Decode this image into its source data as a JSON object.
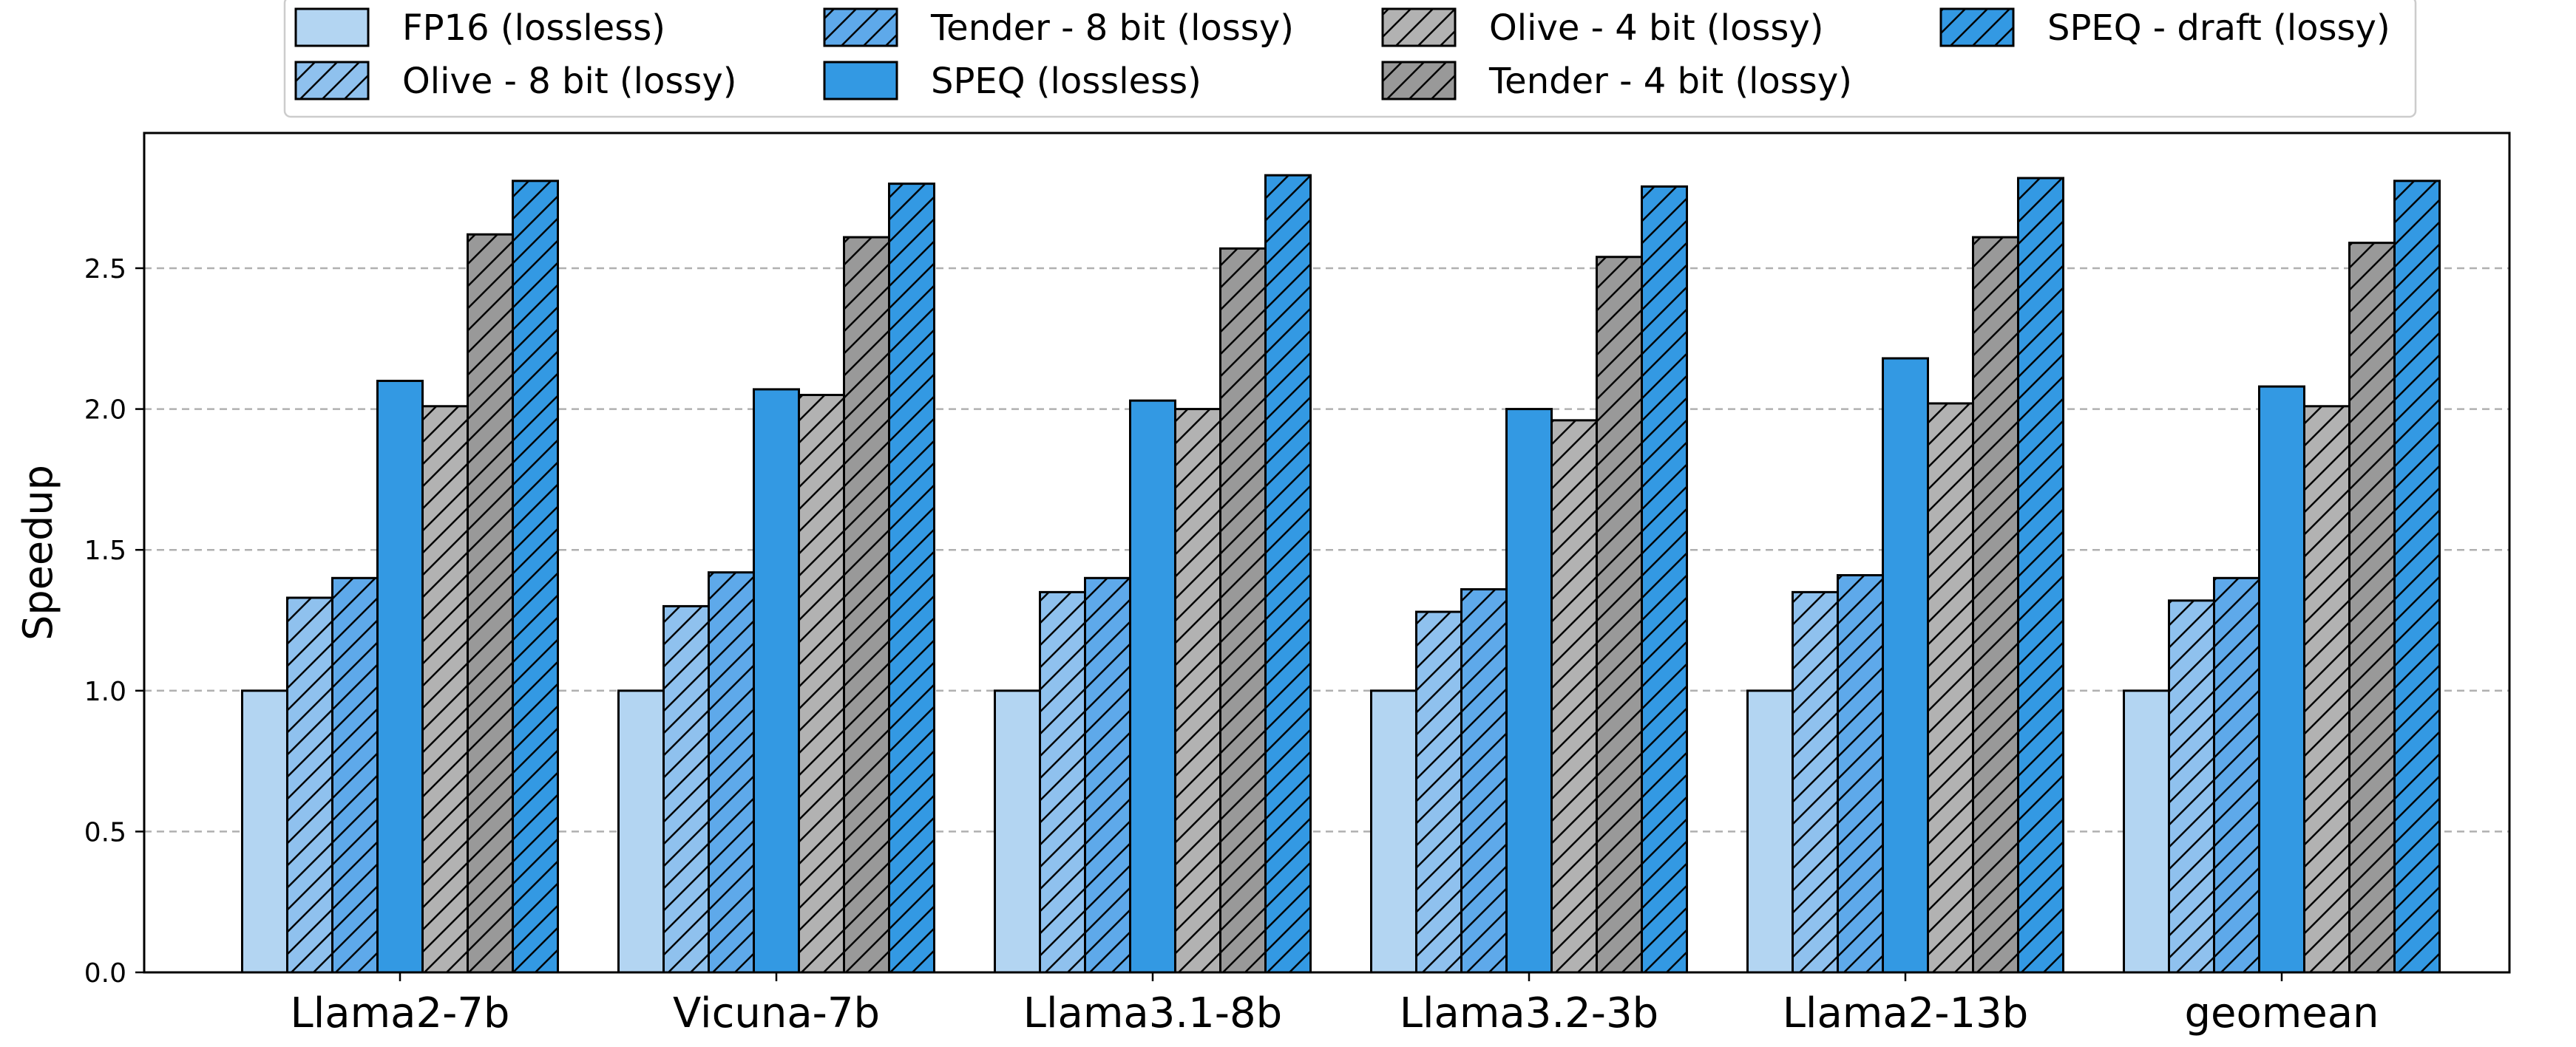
{
  "chart_data": {
    "type": "bar",
    "title": "",
    "xlabel": "",
    "ylabel": "Speedup",
    "ylim": [
      0,
      2.98
    ],
    "yticks": [
      "0.0",
      "0.5",
      "1.0",
      "1.5",
      "2.0",
      "2.5"
    ],
    "ytick_values": [
      0,
      0.5,
      1.0,
      1.5,
      2.0,
      2.5
    ],
    "grid": "y-dashed",
    "legend_position": "top-center",
    "categories": [
      "Llama2-7b",
      "Vicuna-7b",
      "Llama3.1-8b",
      "Llama3.2-3b",
      "Llama2-13b",
      "geomean"
    ],
    "series": [
      {
        "name": "FP16 (lossless)",
        "color": "#b3d5f2",
        "hatch": false,
        "values": [
          1.0,
          1.0,
          1.0,
          1.0,
          1.0,
          1.0
        ]
      },
      {
        "name": "Olive - 8 bit (lossy)",
        "color": "#8fc1ee",
        "hatch": true,
        "values": [
          1.33,
          1.3,
          1.35,
          1.28,
          1.35,
          1.32
        ]
      },
      {
        "name": "Tender - 8 bit (lossy)",
        "color": "#5ea9ea",
        "hatch": true,
        "values": [
          1.4,
          1.42,
          1.4,
          1.36,
          1.41,
          1.4
        ]
      },
      {
        "name": "SPEQ (lossless)",
        "color": "#3399e3",
        "hatch": false,
        "values": [
          2.1,
          2.07,
          2.03,
          2.0,
          2.18,
          2.08
        ]
      },
      {
        "name": "Olive - 4 bit (lossy)",
        "color": "#b2b2b2",
        "hatch": true,
        "values": [
          2.01,
          2.05,
          2.0,
          1.96,
          2.02,
          2.01
        ]
      },
      {
        "name": "Tender - 4 bit (lossy)",
        "color": "#999999",
        "hatch": true,
        "values": [
          2.62,
          2.61,
          2.57,
          2.54,
          2.61,
          2.59
        ]
      },
      {
        "name": "SPEQ - draft (lossy)",
        "color": "#3399e3",
        "hatch": true,
        "values": [
          2.81,
          2.8,
          2.83,
          2.79,
          2.82,
          2.81
        ]
      }
    ]
  }
}
